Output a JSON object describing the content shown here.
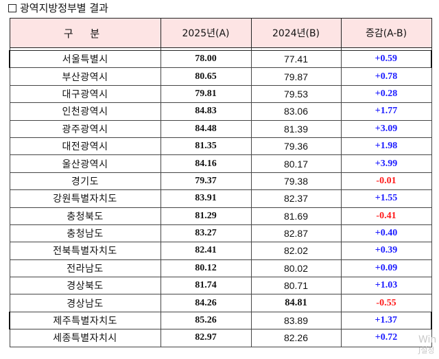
{
  "heading": "광역지방정부별 결과",
  "table": {
    "headers": [
      "구 분",
      "2025년(A)",
      "2024년(B)",
      "증감(A-B)"
    ],
    "rows": [
      {
        "name": "서울특별시",
        "a": "78.00",
        "b": "77.41",
        "diff": "+0.59",
        "sign": "pos",
        "highlight": true
      },
      {
        "name": "부산광역시",
        "a": "80.65",
        "b": "79.87",
        "diff": "+0.78",
        "sign": "pos"
      },
      {
        "name": "대구광역시",
        "a": "79.81",
        "b": "79.53",
        "diff": "+0.28",
        "sign": "pos"
      },
      {
        "name": "인천광역시",
        "a": "84.83",
        "b": "83.06",
        "diff": "+1.77",
        "sign": "pos"
      },
      {
        "name": "광주광역시",
        "a": "84.48",
        "b": "81.39",
        "diff": "+3.09",
        "sign": "pos"
      },
      {
        "name": "대전광역시",
        "a": "81.35",
        "b": "79.36",
        "diff": "+1.98",
        "sign": "pos"
      },
      {
        "name": "울산광역시",
        "a": "84.16",
        "b": "80.17",
        "diff": "+3.99",
        "sign": "pos"
      },
      {
        "name": "경기도",
        "a": "79.37",
        "b": "79.38",
        "diff": "-0.01",
        "sign": "neg"
      },
      {
        "name": "강원특별자치도",
        "a": "83.91",
        "b": "82.37",
        "diff": "+1.55",
        "sign": "pos"
      },
      {
        "name": "충청북도",
        "a": "81.29",
        "b": "81.69",
        "diff": "-0.41",
        "sign": "neg"
      },
      {
        "name": "충청남도",
        "a": "83.27",
        "b": "82.87",
        "diff": "+0.40",
        "sign": "pos"
      },
      {
        "name": "전북특별자치도",
        "a": "82.41",
        "b": "82.02",
        "diff": "+0.39",
        "sign": "pos"
      },
      {
        "name": "전라남도",
        "a": "80.12",
        "b": "80.02",
        "diff": "+0.09",
        "sign": "pos"
      },
      {
        "name": "경상북도",
        "a": "81.74",
        "b": "80.71",
        "diff": "+1.03",
        "sign": "pos"
      },
      {
        "name": "경상남도",
        "a": "84.26",
        "b": "84.81",
        "diff": "-0.55",
        "sign": "neg",
        "b_bold": true
      },
      {
        "name": "제주특별자치도",
        "a": "85.26",
        "b": "83.89",
        "diff": "+1.37",
        "sign": "pos",
        "highlight": true
      },
      {
        "name": "세종특별자치시",
        "a": "82.97",
        "b": "82.26",
        "diff": "+0.72",
        "sign": "pos"
      }
    ]
  },
  "colors": {
    "header_bg": "#fde4e4",
    "positive": "#1a1aff",
    "negative": "#ff1a1a"
  },
  "watermark": {
    "line1": "Win",
    "line2": "J설정"
  }
}
